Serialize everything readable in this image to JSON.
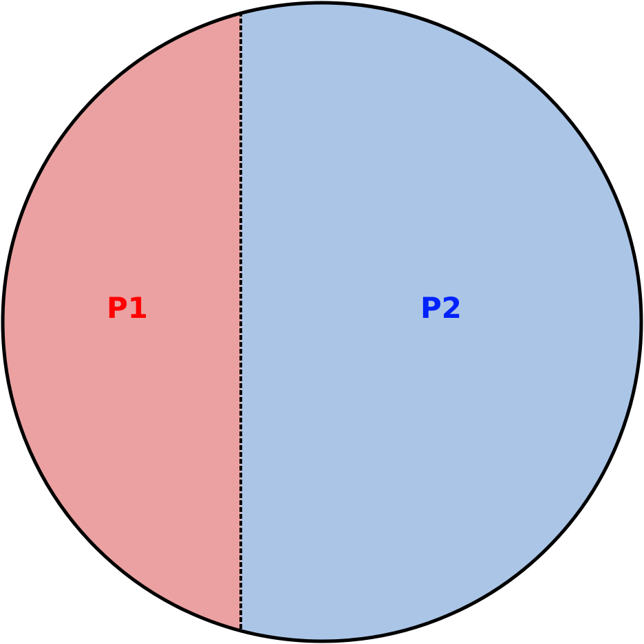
{
  "regions": [
    {
      "label": "P1",
      "fill": "#eba1a1",
      "label_color": "#ff0000"
    },
    {
      "label": "P2",
      "fill": "#abc5e6",
      "label_color": "#0022ff"
    }
  ],
  "outline_color": "#000000",
  "divider_style": "dashed"
}
